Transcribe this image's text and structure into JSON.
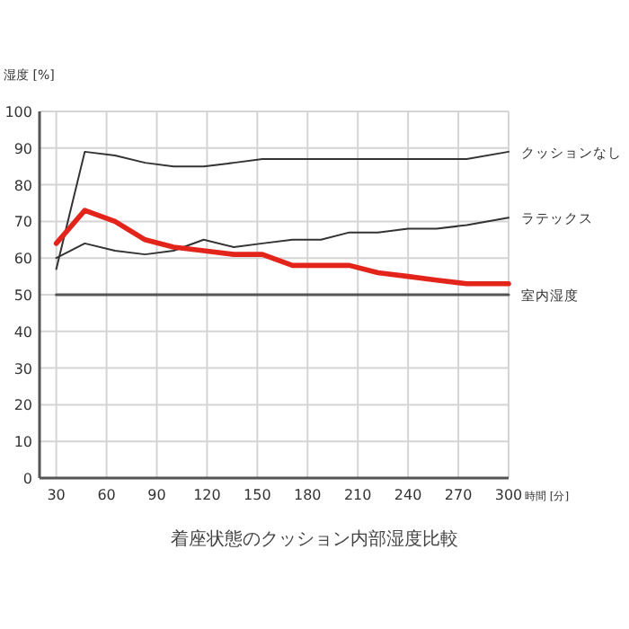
{
  "chart_data": {
    "type": "line",
    "title": "着座状態のクッション内部湿度比較",
    "xlabel": "時間 [分]",
    "ylabel": "湿度 [%]",
    "x": [
      30,
      47,
      65,
      83,
      100,
      118,
      136,
      153,
      171,
      188,
      205,
      222,
      240,
      257,
      275,
      300
    ],
    "series": [
      {
        "name": "クッションなし",
        "color": "#333333",
        "values": [
          57,
          89,
          88,
          86,
          85,
          85,
          86,
          87,
          87,
          87,
          87,
          87,
          87,
          87,
          87,
          89
        ]
      },
      {
        "name": "ラテックス",
        "color": "#333333",
        "values": [
          60,
          64,
          62,
          61,
          62,
          65,
          63,
          64,
          65,
          65,
          67,
          67,
          68,
          68,
          69,
          71
        ]
      },
      {
        "color": "#e3241b",
        "values": [
          64,
          73,
          70,
          65,
          63,
          62,
          61,
          61,
          58,
          58,
          58,
          56,
          55,
          54,
          53,
          53
        ]
      },
      {
        "name": "室内湿度",
        "color": "#555555",
        "x": [
          30,
          300
        ],
        "values": [
          50,
          50
        ]
      }
    ],
    "xlim": [
      20,
      300
    ],
    "ylim": [
      0,
      100
    ],
    "xticks": [
      30,
      60,
      90,
      120,
      150,
      180,
      210,
      240,
      270,
      300
    ],
    "yticks": [
      0,
      10,
      20,
      30,
      40,
      50,
      60,
      70,
      80,
      90,
      100
    ],
    "grid": true,
    "marker": "none",
    "line_style": "solid"
  }
}
